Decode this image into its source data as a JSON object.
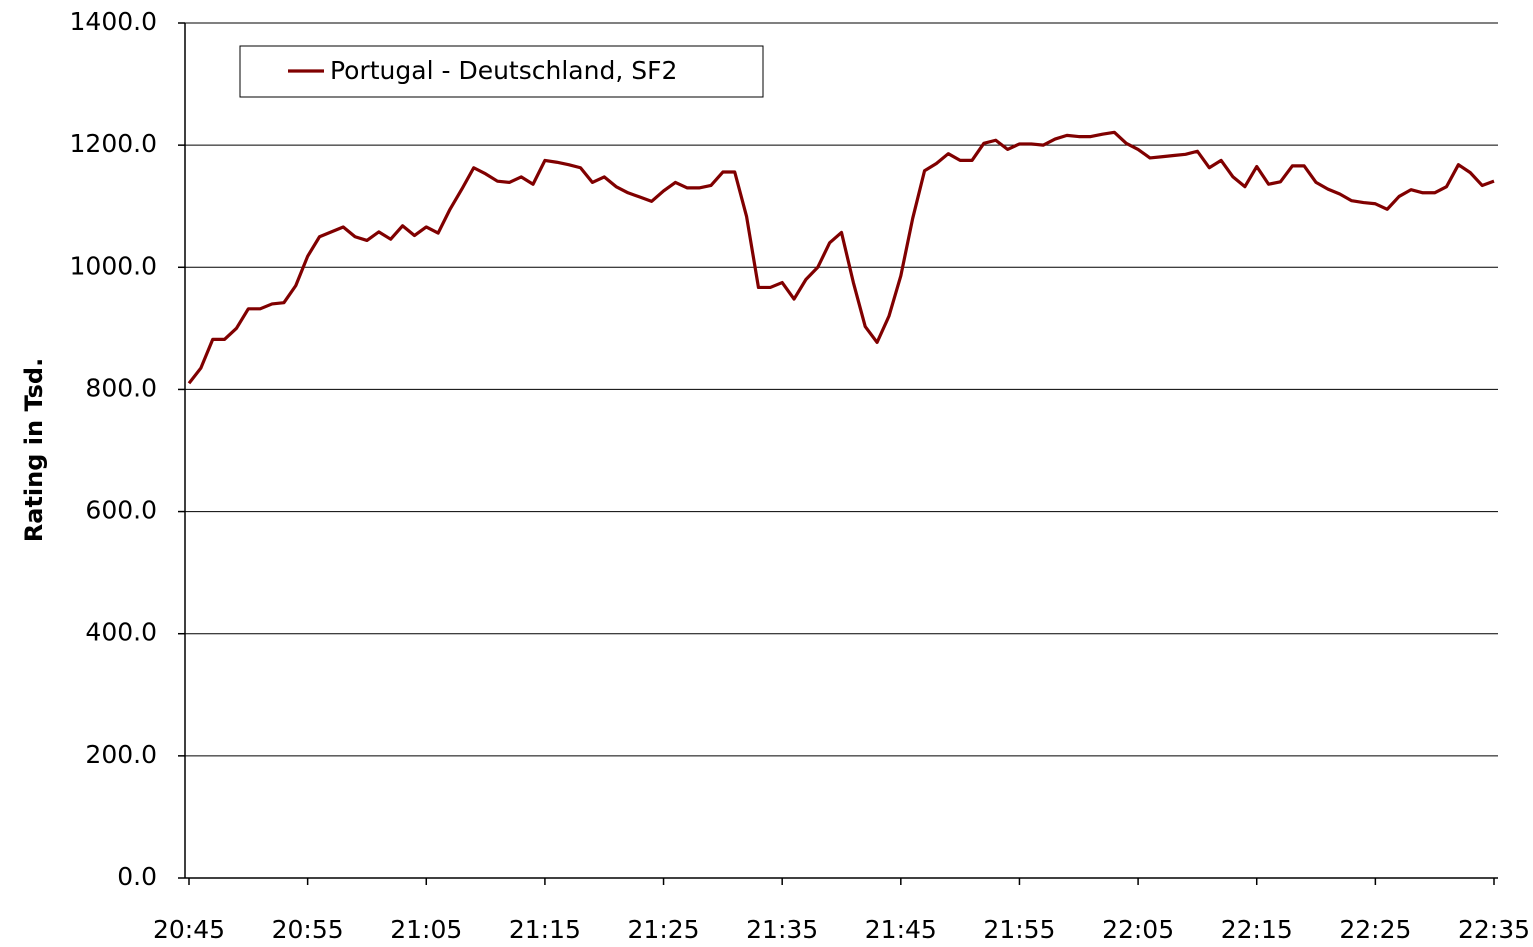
{
  "chart_data": {
    "type": "line",
    "ylabel": "Rating in Tsd.",
    "categories": [
      "20:45",
      null,
      null,
      null,
      null,
      null,
      null,
      null,
      null,
      null,
      "20:55",
      null,
      null,
      null,
      null,
      null,
      null,
      null,
      null,
      null,
      "21:05",
      null,
      null,
      null,
      null,
      null,
      null,
      null,
      null,
      null,
      "21:15",
      null,
      null,
      null,
      null,
      null,
      null,
      null,
      null,
      null,
      "21:25",
      null,
      null,
      null,
      null,
      null,
      null,
      null,
      null,
      null,
      "21:35",
      null,
      null,
      null,
      null,
      null,
      null,
      null,
      null,
      null,
      "21:45",
      null,
      null,
      null,
      null,
      null,
      null,
      null,
      null,
      null,
      "21:55",
      null,
      null,
      null,
      null,
      null,
      null,
      null,
      null,
      null,
      "22:05",
      null,
      null,
      null,
      null,
      null,
      null,
      null,
      null,
      null,
      "22:15",
      null,
      null,
      null,
      null,
      null,
      null,
      null,
      null,
      null,
      "22:25",
      null,
      null,
      null,
      null,
      null,
      null,
      null,
      null,
      null,
      "22:35"
    ],
    "series": [
      {
        "name": "Portugal - Deutschland, SF2",
        "color": "#800000",
        "values": [
          810,
          835,
          882,
          882,
          900,
          932,
          932,
          940,
          942,
          970,
          1018,
          1050,
          1058,
          1066,
          1050,
          1044,
          1058,
          1046,
          1068,
          1052,
          1066,
          1056,
          1095,
          1128,
          1163,
          1153,
          1141,
          1139,
          1148,
          1136,
          1175,
          1172,
          1168,
          1163,
          1139,
          1148,
          1132,
          1122,
          1115,
          1108,
          1125,
          1139,
          1130,
          1130,
          1134,
          1156,
          1156,
          1083,
          967,
          967,
          975,
          948,
          980,
          1000,
          1040,
          1057,
          975,
          903,
          877,
          920,
          986,
          1080,
          1158,
          1170,
          1186,
          1175,
          1175,
          1203,
          1208,
          1193,
          1202,
          1202,
          1200,
          1210,
          1216,
          1214,
          1214,
          1218,
          1221,
          1203,
          1193,
          1179,
          1181,
          1183,
          1185,
          1190,
          1163,
          1175,
          1148,
          1132,
          1165,
          1136,
          1140,
          1166,
          1166,
          1139,
          1128,
          1120,
          1109,
          1106,
          1104,
          1095,
          1116,
          1127,
          1122,
          1122,
          1132,
          1168,
          1155,
          1134,
          1141
        ]
      }
    ],
    "ylim": [
      0,
      1400
    ],
    "yticks": [
      {
        "value": 0,
        "label": "0.0"
      },
      {
        "value": 200,
        "label": "200.0"
      },
      {
        "value": 400,
        "label": "400.0"
      },
      {
        "value": 600,
        "label": "600.0"
      },
      {
        "value": 800,
        "label": "800.0"
      },
      {
        "value": 1000,
        "label": "1000.0"
      },
      {
        "value": 1200,
        "label": "1200.0"
      },
      {
        "value": 1400,
        "label": "1400.0"
      }
    ],
    "grid": true,
    "legend": "upper left"
  }
}
